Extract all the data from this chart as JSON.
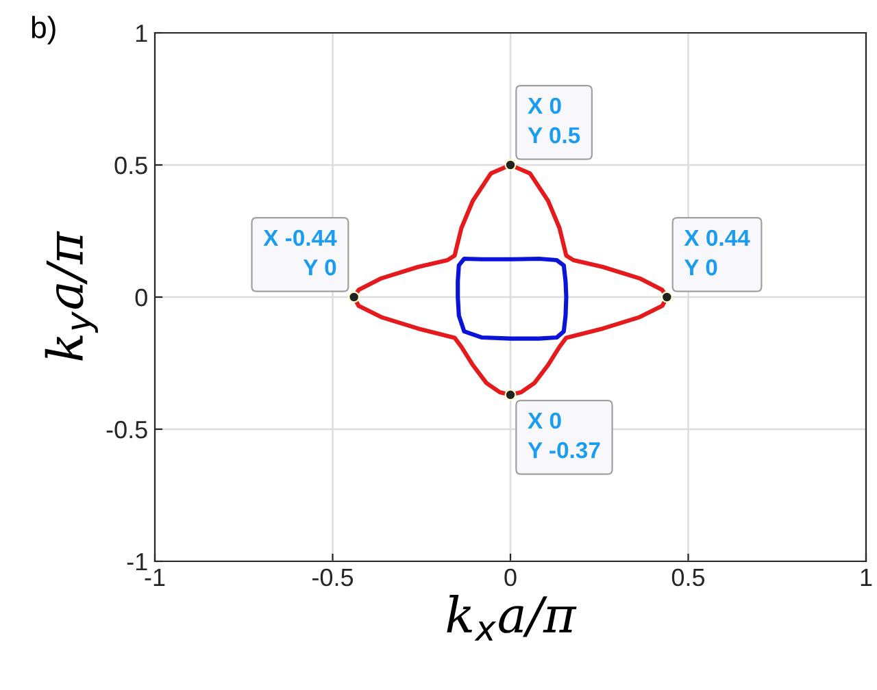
{
  "chart_data": {
    "type": "line",
    "xlabel": "k$_{x}$a/π",
    "ylabel": "k$_{y}$a/π",
    "xlim": [
      -1,
      1
    ],
    "ylim": [
      -1,
      1
    ],
    "xticks": [
      {
        "value": -1,
        "label": "-1"
      },
      {
        "value": -0.5,
        "label": "-0.5"
      },
      0,
      0.5,
      1
    ],
    "yticks": [
      {
        "value": -1,
        "label": "-1"
      },
      {
        "value": -0.5,
        "label": "-0.5"
      },
      0,
      0.5,
      1
    ],
    "grid": true,
    "marker": "none",
    "line_style": "solid",
    "series": [
      {
        "color": "#e41a1c",
        "x": [
          -0.44,
          -0.427,
          -0.363,
          -0.26,
          -0.177,
          -0.157,
          -0.138,
          -0.106,
          -0.055,
          0,
          0.055,
          0.106,
          0.138,
          0.157,
          0.177,
          0.26,
          0.363,
          0.427,
          0.44
        ],
        "values": [
          0,
          0.027,
          0.071,
          0.114,
          0.14,
          0.157,
          0.261,
          0.364,
          0.468,
          0.5,
          0.468,
          0.364,
          0.261,
          0.157,
          0.14,
          0.114,
          0.071,
          0.027,
          0
        ]
      },
      {
        "color": "#e41a1c",
        "x": [
          -0.44,
          -0.427,
          -0.363,
          -0.26,
          -0.157,
          -0.138,
          -0.106,
          -0.067,
          -0.03,
          0,
          0.03,
          0.067,
          0.106,
          0.138,
          0.157,
          0.26,
          0.363,
          0.427,
          0.44
        ],
        "values": [
          0,
          -0.033,
          -0.076,
          -0.119,
          -0.154,
          -0.188,
          -0.257,
          -0.326,
          -0.36,
          -0.37,
          -0.36,
          -0.326,
          -0.257,
          -0.188,
          -0.154,
          -0.119,
          -0.076,
          -0.033,
          0
        ]
      },
      {
        "color": "#0a14d8",
        "x": [
          -0.148,
          -0.148,
          -0.145,
          -0.13,
          -0.08,
          0,
          0.08,
          0.13,
          0.15,
          0.155,
          0.157,
          null,
          -0.148,
          -0.145,
          -0.13,
          -0.08,
          0,
          0.08,
          0.13,
          0.15,
          0.155,
          0.157
        ],
        "values": [
          0,
          0.06,
          0.12,
          0.145,
          0.143,
          0.143,
          0.145,
          0.14,
          0.12,
          0.06,
          0,
          null,
          0,
          -0.07,
          -0.13,
          -0.153,
          -0.157,
          -0.157,
          -0.153,
          -0.13,
          -0.07,
          0
        ]
      },
      {
        "type": "scatter",
        "marker": "circle",
        "color": "#222222",
        "x": [
          0,
          -0.44,
          0.44,
          0
        ],
        "values": [
          0.5,
          0,
          0,
          -0.37
        ]
      }
    ],
    "annotations": [
      "b)",
      {
        "text": "X 0\nY 0.5",
        "x": 0,
        "y": 0.5
      },
      {
        "text": "X -0.44\nY 0",
        "x": -0.44,
        "y": 0
      },
      {
        "text": "X 0.44\nY 0",
        "x": 0.44,
        "y": 0
      },
      {
        "text": "X 0\nY -0.37",
        "x": 0,
        "y": -0.37
      }
    ]
  }
}
